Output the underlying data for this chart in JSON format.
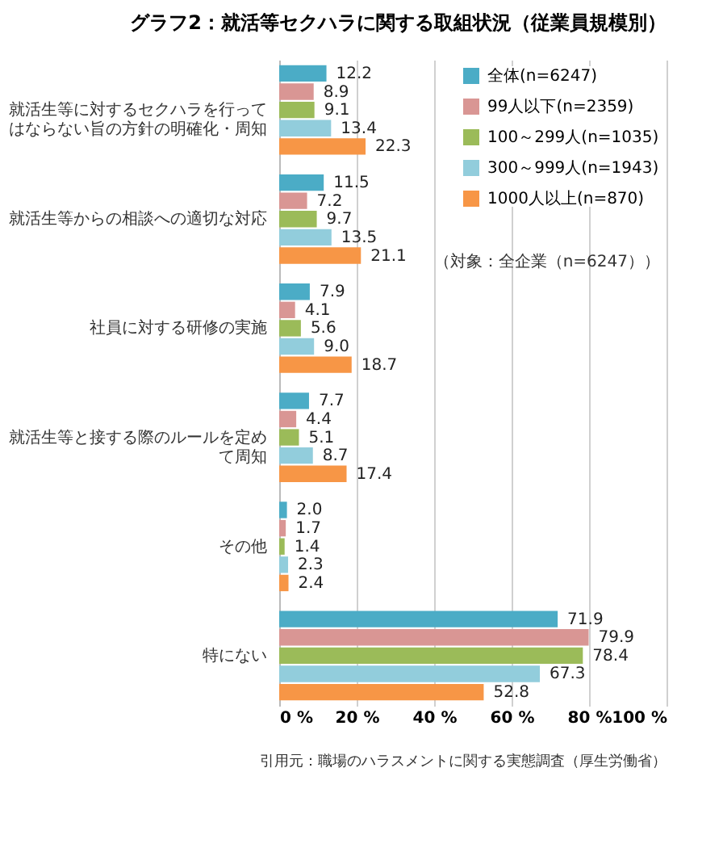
{
  "chart_data": {
    "type": "bar",
    "orientation": "horizontal",
    "title": "グラフ2：就活等セクハラに関する取組状況（従業員規模別）",
    "categories": [
      "就活生等に対するセクハラを行ってはならない旨の方針の明確化・周知",
      "就活生等からの相談への適切な対応",
      "社員に対する研修の実施",
      "就活生等と接する際のルールを定めて周知",
      "その他",
      "特にない"
    ],
    "series": [
      {
        "name": "全体(n=6247)",
        "color": "#4bacc6",
        "values": [
          12.2,
          11.5,
          7.9,
          7.7,
          2.0,
          71.9
        ],
        "value_labels": [
          "12.2",
          "11.5",
          "7.9",
          "7.7",
          "2.0",
          "71.9"
        ]
      },
      {
        "name": "99人以下(n=2359)",
        "color": "#d99694",
        "values": [
          8.9,
          7.2,
          4.1,
          4.4,
          1.7,
          79.9
        ],
        "value_labels": [
          "8.9",
          "7.2",
          "4.1",
          "4.4",
          "1.7",
          "79.9"
        ]
      },
      {
        "name": "100～299人(n=1035)",
        "color": "#9bbb59",
        "values": [
          9.1,
          9.7,
          5.6,
          5.1,
          1.4,
          78.4
        ],
        "value_labels": [
          "9.1",
          "9.7",
          "5.6",
          "5.1",
          "1.4",
          "78.4"
        ]
      },
      {
        "name": "300～999人(n=1943)",
        "color": "#92cddc",
        "values": [
          13.4,
          13.5,
          9.0,
          8.7,
          2.3,
          67.3
        ],
        "value_labels": [
          "13.4",
          "13.5",
          "9.0",
          "8.7",
          "2.3",
          "67.3"
        ]
      },
      {
        "name": "1000人以上(n=870)",
        "color": "#f79646",
        "values": [
          22.3,
          21.1,
          18.7,
          17.4,
          2.4,
          52.8
        ],
        "value_labels": [
          "22.3",
          "21.1",
          "18.7",
          "17.4",
          "2.4",
          "52.8"
        ]
      }
    ],
    "xlim": [
      0,
      100
    ],
    "xticks": [
      {
        "value": 0,
        "label": "0 %"
      },
      {
        "value": 20,
        "label": "20 %"
      },
      {
        "value": 40,
        "label": "40 %"
      },
      {
        "value": 60,
        "label": "60 %"
      },
      {
        "value": 80,
        "label": "80 %"
      },
      {
        "value": 100,
        "label": "100 %"
      }
    ],
    "grid": "x",
    "legend": "top right",
    "annotations": [
      "（対象：全企業（n=6247））",
      "引用元：職場のハラスメントに関する実態調査（厚生労働省）"
    ]
  }
}
